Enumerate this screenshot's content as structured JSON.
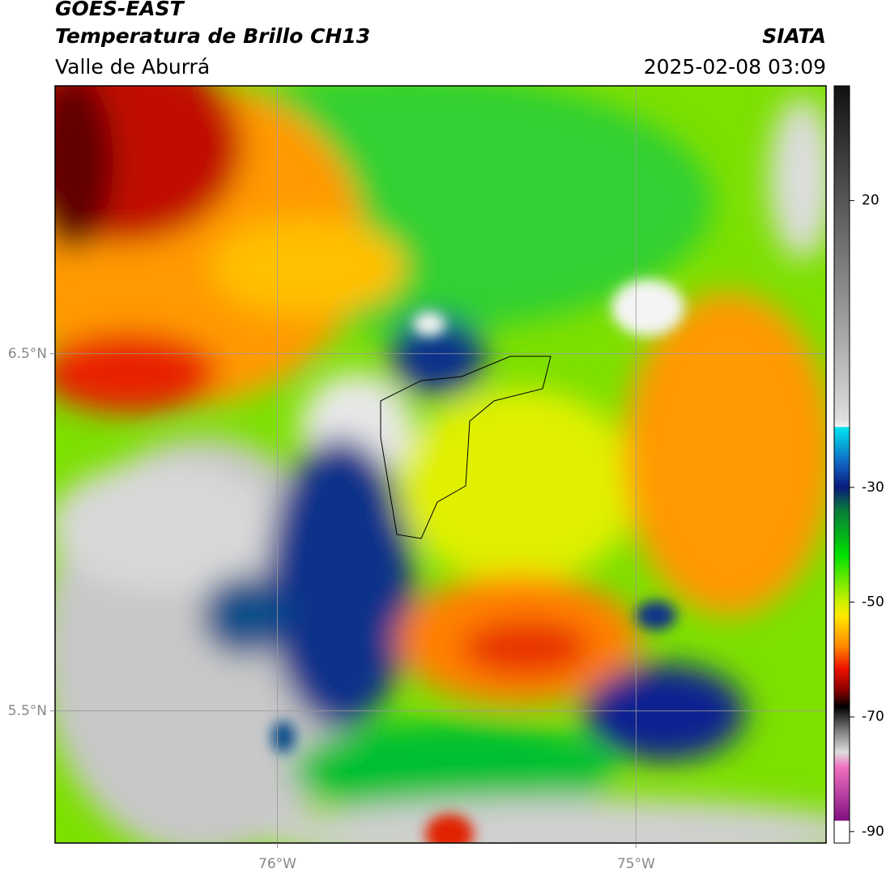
{
  "header": {
    "title": "GOES-EAST",
    "subtitle": "Temperatura de Brillo CH13",
    "region": "Valle de Aburrá",
    "source": "SIATA",
    "datetime": "2025-02-08 03:09"
  },
  "map": {
    "xlim": [
      -76.62,
      -74.47
    ],
    "ylim": [
      5.13,
      7.25
    ],
    "xticks": [
      {
        "value": -76,
        "label": "76°W"
      },
      {
        "value": -75,
        "label": "75°W"
      }
    ],
    "yticks": [
      {
        "value": 6.5,
        "label": "6.5°N"
      },
      {
        "value": 5.5,
        "label": "5.5°N"
      }
    ],
    "grid": true
  },
  "colorbar": {
    "lim": [
      -92,
      40
    ],
    "ticks": [
      20,
      -30,
      -50,
      -70,
      -90
    ]
  }
}
